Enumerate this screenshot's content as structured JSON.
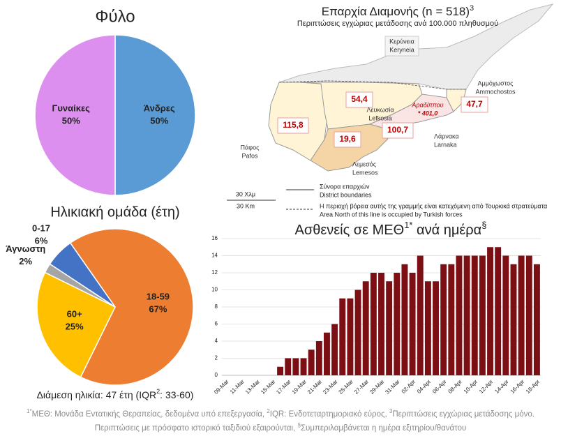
{
  "chart_data": [
    {
      "type": "pie",
      "title": "Φύλο",
      "categories": [
        "Άνδρες",
        "Γυναίκες"
      ],
      "values": [
        50,
        50
      ],
      "value_labels": [
        "50%",
        "50%"
      ],
      "colors": [
        "#5b9bd5",
        "#dd8fef"
      ]
    },
    {
      "type": "pie",
      "title": "Ηλικιακή ομάδα (έτη)",
      "categories": [
        "18-59",
        "60+",
        "Άγνωστη",
        "0-17"
      ],
      "values": [
        67,
        25,
        2,
        6
      ],
      "value_labels": [
        "67%",
        "25%",
        "2%",
        "6%"
      ],
      "colors": [
        "#ed7d31",
        "#ffc000",
        "#a5a5a5",
        "#4472c4"
      ],
      "note": [
        "Διάμεση ηλικία: 47 έτη (IQR",
        "2",
        ": 33-60)"
      ]
    },
    {
      "type": "bar",
      "title": [
        "Ασθενείς σε ΜΕΘ",
        "1*",
        " ανά ημέρα",
        "§"
      ],
      "categories": [
        "09-Mar",
        null,
        "11-Mar",
        null,
        "13-Mar",
        null,
        "15-Mar",
        null,
        "17-Mar",
        null,
        "19-Mar",
        null,
        "21-Mar",
        null,
        "23-Mar",
        null,
        "25-Mar",
        null,
        "27-Mar",
        null,
        "29-Mar",
        null,
        "31-Mar",
        null,
        "02-Apr",
        null,
        "04-Apr",
        null,
        "06-Apr",
        null,
        "08-Apr",
        null,
        "10-Apr",
        null,
        "12-Apr",
        null,
        "14-Apr",
        null,
        "16-Apr",
        null,
        "18-Apr"
      ],
      "values": [
        0,
        0,
        0,
        0,
        0,
        0,
        0,
        1,
        2,
        2,
        2,
        3,
        4,
        5,
        6,
        9,
        9,
        10,
        11,
        12,
        12,
        11,
        12,
        13,
        12,
        14,
        11,
        11,
        13,
        13,
        14,
        14,
        14,
        14,
        15,
        15,
        14,
        13,
        14,
        14,
        13
      ],
      "color": "#7b0f14",
      "ylim": [
        0,
        16
      ],
      "yticks": [
        0,
        2,
        4,
        6,
        8,
        10,
        12,
        14,
        16
      ],
      "grid": true
    }
  ],
  "map": {
    "title": [
      "Επαρχία Διαμονής (n = 518)",
      "3"
    ],
    "subtitle": "Περιπτώσεις εγχώριας μετάδοσης ανά 100.000 πληθυσμού",
    "places": [
      {
        "name": "Κερύνεια",
        "name_en": "Keryneia"
      },
      {
        "name": "Λευκωσία",
        "name_en": "Lefkosia",
        "rate": "54,4"
      },
      {
        "name": "Αμμόχωστος",
        "name_en": "Ammochostos",
        "rate": "47,7"
      },
      {
        "name": "Λάρνακα",
        "name_en": "Larnaka",
        "rate": "100,7"
      },
      {
        "name": "Πάφος",
        "name_en": "Pafos",
        "rate": "115,8"
      },
      {
        "name": "Λεμεσός",
        "name_en": "Lemesos",
        "rate": "19,6"
      }
    ],
    "aradippou": {
      "name": "Αραδίππου",
      "rate": "* 401,0"
    },
    "scale": [
      "30 Χλμ",
      "30 Km"
    ],
    "legend": [
      [
        "Σύνορα επαρχιών",
        "District boundaries"
      ],
      [
        "Η περιοχή βόρεια αυτής της γραμμής είναι κατεχόμενη από Τουρκικά στρατεύματα",
        "Area North of this line is occupied by Turkish forces"
      ]
    ]
  },
  "footnotes": [
    {
      "mark": "1*",
      "text": "ΜΕΘ: Μονάδα Εντατικής Θεραπείας, δεδομένα υπό επεξεργασία, "
    },
    {
      "mark": "2",
      "text": "IQR: Ενδοτεταρτημοριακό εύρος, "
    },
    {
      "mark": "3",
      "text": "Περιπτώσεις εγχώριας μετάδοσης μόνο. Περιπτώσεις με πρόσφατο ιστορικό ταξιδιού εξαιρούνται, "
    },
    {
      "mark": "§",
      "text": "Συμπεριλαμβάνεται η ημέρα εξιτηρίου/θανάτου"
    }
  ]
}
